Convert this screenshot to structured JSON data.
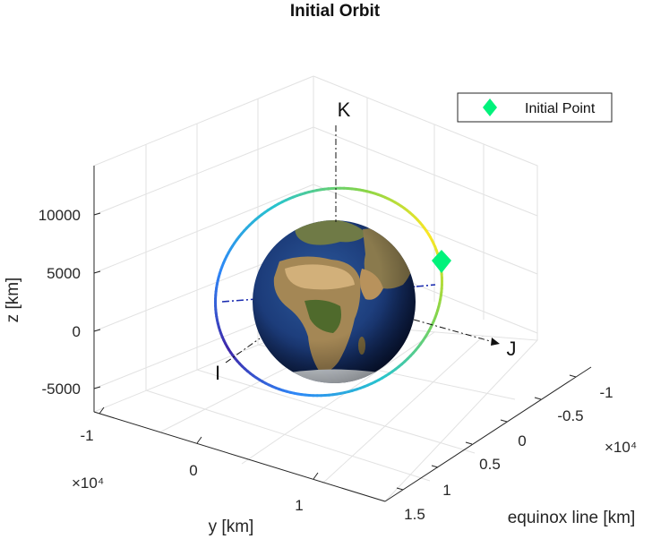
{
  "chart_data": {
    "type": "3d-line",
    "title": "Initial Orbit",
    "xlabel": "equinox line [km]",
    "ylabel": "y [km]",
    "zlabel": "z [km]",
    "x_ticks": [
      -1,
      -0.5,
      0,
      0.5,
      1,
      1.5
    ],
    "x_tick_labels": [
      "-1",
      "-0.5",
      "0",
      "0.5",
      "1",
      "1.5"
    ],
    "x_multiplier": "×10⁴",
    "y_ticks": [
      -1,
      0,
      1
    ],
    "y_tick_labels": [
      "-1",
      "0",
      "1"
    ],
    "y_multiplier": "×10⁴",
    "z_ticks": [
      -5000,
      0,
      5000,
      10000
    ],
    "z_tick_labels": [
      "-5000",
      "0",
      "5000",
      "10000"
    ],
    "grid": true,
    "frame_axes": {
      "I_label": "I",
      "J_label": "J",
      "K_label": "K"
    },
    "legend": {
      "placement": "top-right",
      "entries": [
        {
          "label": "Initial Point",
          "color": "#00f27b",
          "marker": "diamond"
        }
      ]
    },
    "colors": {
      "orbit_colormap": [
        "#3e26a8",
        "#2e87f7",
        "#28c4cd",
        "#86d549",
        "#fde724"
      ],
      "initial_point": "#00f27b",
      "ocean": "#1d3a72",
      "land": "#8a7a4d"
    },
    "central_body": "Earth"
  }
}
